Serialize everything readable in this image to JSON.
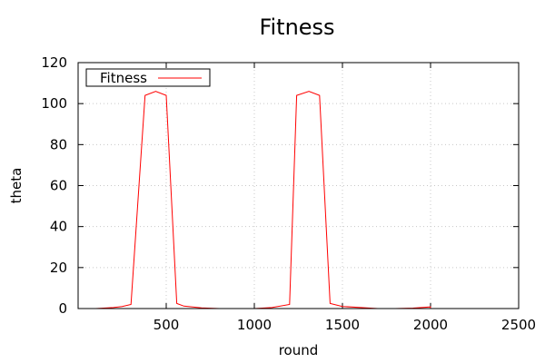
{
  "chart_data": {
    "type": "line",
    "title": "Fitness",
    "xlabel": "round",
    "ylabel": "theta",
    "xlim": [
      0,
      2500
    ],
    "ylim": [
      0,
      120
    ],
    "xticks": [
      500,
      1000,
      1500,
      2000,
      2500
    ],
    "yticks": [
      0,
      20,
      40,
      60,
      80,
      100,
      120
    ],
    "grid": true,
    "legend_position": "top-left",
    "series": [
      {
        "name": "Fitness",
        "color": "#ff0000",
        "x": [
          0,
          100,
          200,
          250,
          300,
          380,
          440,
          500,
          560,
          600,
          700,
          800,
          1000,
          1100,
          1200,
          1240,
          1310,
          1370,
          1430,
          1500,
          1700,
          1800,
          1900,
          2000,
          2000,
          2500
        ],
        "y": [
          0,
          0,
          0.5,
          1,
          2,
          104,
          106,
          104,
          2.5,
          1.2,
          0.3,
          0,
          0,
          0.5,
          2,
          104,
          106,
          104,
          2.5,
          1,
          0,
          0,
          0.2,
          0.8,
          0,
          0
        ]
      }
    ]
  }
}
